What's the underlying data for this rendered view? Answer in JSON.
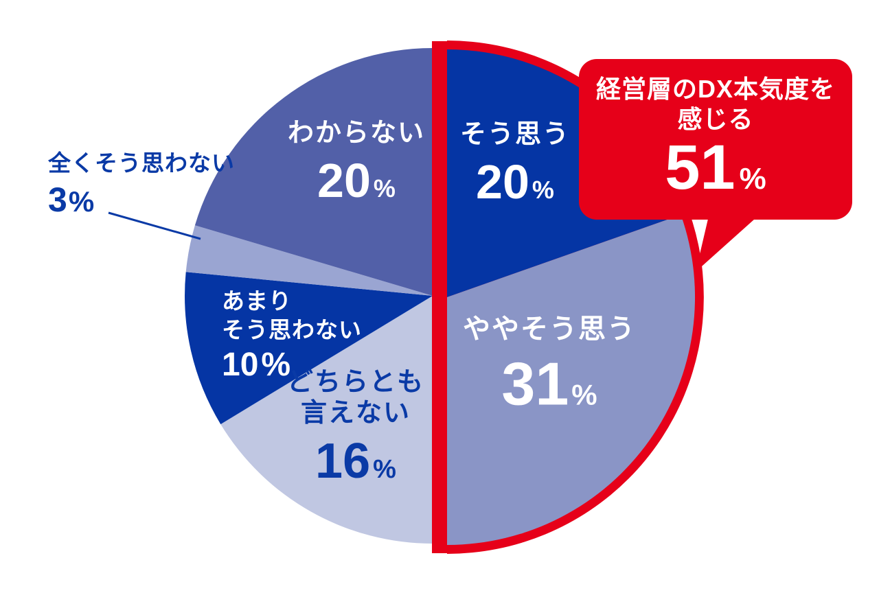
{
  "chart_data": {
    "type": "pie",
    "unit": "%",
    "background": "#ffffff",
    "legend_position": "on-slices",
    "segments": [
      {
        "label": "そう思う",
        "percent": 20,
        "value_text": "20",
        "color": "#0535A4",
        "text_color": "#ffffff",
        "half": "right"
      },
      {
        "label": "ややそう思う",
        "percent": 31,
        "value_text": "31",
        "color": "#8A95C6",
        "text_color": "#ffffff",
        "half": "right"
      },
      {
        "label": "どちらとも言えない",
        "label_lines": [
          "どちらとも",
          "言えない"
        ],
        "percent": 16,
        "value_text": "16",
        "color": "#C0C7E2",
        "text_color": "#0A3AA6",
        "half": "left"
      },
      {
        "label": "あまりそう思わない",
        "label_lines": [
          "あまり",
          "そう思わない"
        ],
        "percent": 10,
        "value_text": "10",
        "color": "#0535A4",
        "text_color": "#ffffff",
        "half": "left"
      },
      {
        "label": "全くそう思わない",
        "percent": 3,
        "value_text": "3",
        "color": "#9AA5D2",
        "text_color": "#0A3AA6",
        "half": "left",
        "label_placement": "outside-with-leader-line"
      },
      {
        "label": "わからない",
        "percent": 20,
        "value_text": "20",
        "color": "#5260A8",
        "text_color": "#ffffff",
        "half": "left"
      }
    ],
    "callout": {
      "line1": "経営層のDX本気度を",
      "line2": "感じる",
      "value_text": "51",
      "unit": "%",
      "percent": 51,
      "color": "#E60019",
      "covers_segments": [
        "そう思う",
        "ややそう思う"
      ]
    },
    "highlight_outline_color": "#E60019",
    "leader_line_color": "#0A3AA6"
  }
}
